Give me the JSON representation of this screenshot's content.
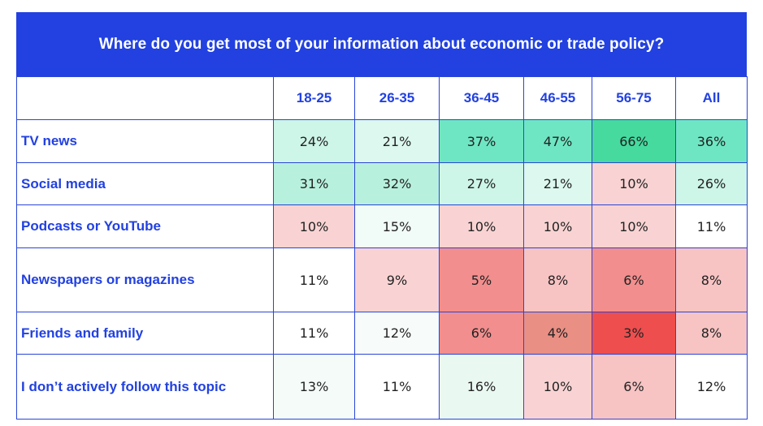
{
  "chart_data": {
    "type": "table",
    "title": "Where do you get most of your information about economic or trade policy?",
    "columns": [
      "18-25",
      "26-35",
      "36-45",
      "46-55",
      "56-75",
      "All"
    ],
    "rows": [
      {
        "label": "TV news",
        "values": [
          "24%",
          "21%",
          "37%",
          "47%",
          "66%",
          "36%"
        ],
        "colors": [
          "#cdf5e8",
          "#dcf8ef",
          "#6ee6c3",
          "#6ee6c3",
          "#46da9f",
          "#6ee6c3"
        ]
      },
      {
        "label": "Social media",
        "values": [
          "31%",
          "32%",
          "27%",
          "21%",
          "10%",
          "26%"
        ],
        "colors": [
          "#b8f0de",
          "#b8f0de",
          "#cdf5e8",
          "#dcf8ef",
          "#f9d3d3",
          "#cdf5e8"
        ]
      },
      {
        "label": "Podcasts or YouTube",
        "values": [
          "10%",
          "15%",
          "10%",
          "10%",
          "10%",
          "11%"
        ],
        "colors": [
          "#f9d3d3",
          "#f1fbf7",
          "#f9d3d3",
          "#f9d3d3",
          "#f9d3d3",
          "#ffffff"
        ]
      },
      {
        "label": "Newspapers or magazines",
        "values": [
          "11%",
          "9%",
          "5%",
          "8%",
          "6%",
          "8%"
        ],
        "colors": [
          "#ffffff",
          "#f9d3d3",
          "#f28e8e",
          "#f7c3c3",
          "#f28e8e",
          "#f7c3c3"
        ]
      },
      {
        "label": "Friends and family",
        "values": [
          "11%",
          "12%",
          "6%",
          "4%",
          "3%",
          "8%"
        ],
        "colors": [
          "#ffffff",
          "#f7fcfa",
          "#f28e8e",
          "#e98f84",
          "#ee4e4e",
          "#f7c3c3"
        ]
      },
      {
        "label": "I don’t actively follow this topic",
        "values": [
          "13%",
          "11%",
          "16%",
          "10%",
          "6%",
          "12%"
        ],
        "colors": [
          "#f4fbf8",
          "#ffffff",
          "#eaf8f2",
          "#f9d3d3",
          "#f7c3c3",
          "#ffffff"
        ]
      }
    ]
  }
}
